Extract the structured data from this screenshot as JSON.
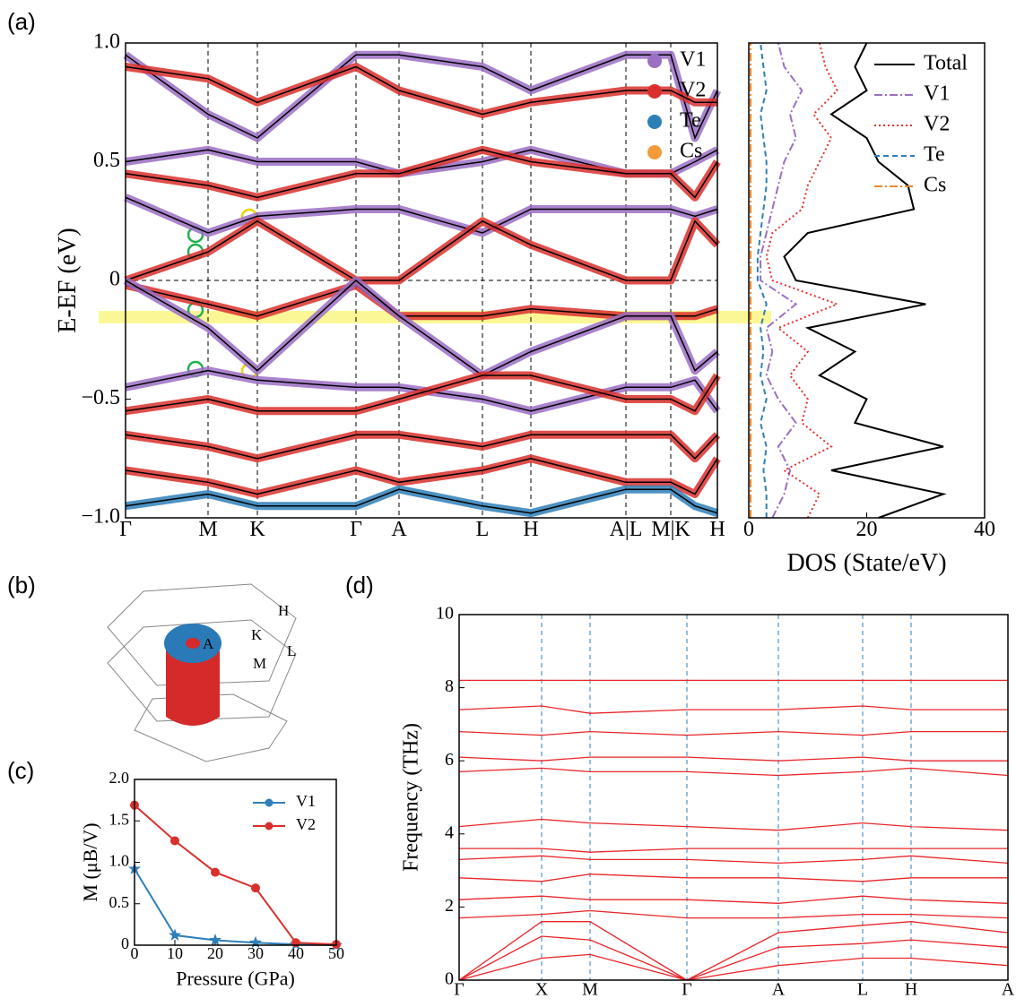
{
  "panels": [
    "(a)",
    "(b)",
    "(c)",
    "(d)"
  ],
  "bz": {
    "labels": [
      "H",
      "K",
      "L",
      "M",
      "A"
    ]
  },
  "chart_data": [
    {
      "type": "band",
      "ylabel": "E-EF (eV)",
      "x": [
        0,
        0.92,
        1.47,
        2.57,
        3.05,
        3.98,
        4.52,
        5.58,
        6.08,
        6.35,
        6.6
      ],
      "xlim": [
        0,
        6.6
      ],
      "xticks": [
        {
          "value": 0,
          "label": "Γ"
        },
        {
          "value": 0.92,
          "label": "M"
        },
        {
          "value": 1.47,
          "label": "K"
        },
        {
          "value": 2.57,
          "label": "Γ"
        },
        {
          "value": 3.05,
          "label": "A"
        },
        {
          "value": 3.98,
          "label": "L"
        },
        {
          "value": 4.52,
          "label": "H"
        },
        {
          "value": 5.58,
          "label": "A|L"
        },
        {
          "value": 6.08,
          "label": "M|K"
        },
        {
          "value": 6.6,
          "label": "H"
        }
      ],
      "ylim": [
        -1,
        1
      ],
      "yticks": [
        {
          "value": -1,
          "label": "−1.0"
        },
        {
          "value": -0.5,
          "label": "−0.5"
        },
        0,
        0.5,
        {
          "value": 1,
          "label": "1.0"
        }
      ],
      "grid": "x",
      "zero_line": true,
      "legend": [
        {
          "name": "V1",
          "color": "#9b6fc4"
        },
        {
          "name": "V2",
          "color": "#d9302c"
        },
        {
          "name": "Te",
          "color": "#2e7fb8"
        },
        {
          "name": "Cs",
          "color": "#f39a3b"
        }
      ],
      "series": [
        {
          "color": "#9b6fc4",
          "values": [
            0.95,
            0.7,
            0.6,
            0.95,
            0.95,
            0.9,
            0.8,
            0.95,
            0.95,
            0.6,
            0.8
          ]
        },
        {
          "color": "#d9302c",
          "values": [
            0.9,
            0.85,
            0.75,
            0.9,
            0.8,
            0.7,
            0.75,
            0.8,
            0.8,
            0.75,
            0.75
          ]
        },
        {
          "color": "#9b6fc4",
          "values": [
            0.5,
            0.55,
            0.5,
            0.5,
            0.45,
            0.5,
            0.55,
            0.45,
            0.45,
            0.5,
            0.55
          ]
        },
        {
          "color": "#d9302c",
          "values": [
            0.45,
            0.4,
            0.35,
            0.45,
            0.45,
            0.55,
            0.5,
            0.45,
            0.45,
            0.35,
            0.5
          ]
        },
        {
          "color": "#9b6fc4",
          "values": [
            0.35,
            0.2,
            0.27,
            0.3,
            0.3,
            0.2,
            0.3,
            0.3,
            0.3,
            0.27,
            0.3
          ]
        },
        {
          "color": "#d9302c",
          "values": [
            0.0,
            0.12,
            0.25,
            0.0,
            0.0,
            0.25,
            0.15,
            0.0,
            0.0,
            0.25,
            0.15
          ]
        },
        {
          "color": "#d9302c",
          "values": [
            -0.02,
            -0.1,
            -0.15,
            -0.02,
            -0.15,
            -0.15,
            -0.12,
            -0.15,
            -0.15,
            -0.15,
            -0.12
          ]
        },
        {
          "color": "#9b6fc4",
          "values": [
            0.0,
            -0.2,
            -0.38,
            0.0,
            -0.15,
            -0.4,
            -0.3,
            -0.15,
            -0.15,
            -0.38,
            -0.3
          ]
        },
        {
          "color": "#9b6fc4",
          "values": [
            -0.45,
            -0.38,
            -0.42,
            -0.45,
            -0.45,
            -0.5,
            -0.55,
            -0.45,
            -0.45,
            -0.42,
            -0.55
          ]
        },
        {
          "color": "#d9302c",
          "values": [
            -0.55,
            -0.5,
            -0.55,
            -0.55,
            -0.5,
            -0.4,
            -0.4,
            -0.5,
            -0.5,
            -0.55,
            -0.4
          ]
        },
        {
          "color": "#d9302c",
          "values": [
            -0.65,
            -0.7,
            -0.75,
            -0.65,
            -0.65,
            -0.7,
            -0.65,
            -0.65,
            -0.65,
            -0.75,
            -0.65
          ]
        },
        {
          "color": "#d9302c",
          "values": [
            -0.8,
            -0.85,
            -0.9,
            -0.8,
            -0.85,
            -0.8,
            -0.75,
            -0.85,
            -0.85,
            -0.9,
            -0.75
          ]
        },
        {
          "color": "#2e7fb8",
          "values": [
            -0.95,
            -0.9,
            -0.95,
            -0.95,
            -0.88,
            -0.95,
            -0.98,
            -0.88,
            -0.88,
            -0.95,
            -0.98
          ]
        }
      ]
    },
    {
      "type": "dos",
      "xlabel": "DOS (State/eV)",
      "y": [
        -1.0,
        -0.9,
        -0.8,
        -0.7,
        -0.6,
        -0.5,
        -0.4,
        -0.3,
        -0.2,
        -0.1,
        0,
        0.1,
        0.2,
        0.3,
        0.4,
        0.5,
        0.6,
        0.7,
        0.8,
        0.9,
        1.0
      ],
      "xlim": [
        0,
        40
      ],
      "xticks": [
        0,
        20,
        40
      ],
      "ylim": [
        -1,
        1
      ],
      "series": [
        {
          "name": "Total",
          "color": "#000000",
          "style": "solid",
          "values": [
            22,
            33,
            14,
            33,
            18,
            20,
            12,
            18,
            10,
            30,
            8,
            6,
            10,
            28,
            27,
            22,
            20,
            14,
            20,
            18,
            20
          ]
        },
        {
          "name": "V1",
          "color": "#9b6fc4",
          "style": "dashdot",
          "values": [
            4,
            6,
            7,
            5,
            8,
            5,
            3,
            4,
            3,
            8,
            2,
            2,
            3,
            4,
            5,
            6,
            8,
            7,
            9,
            6,
            5
          ]
        },
        {
          "name": "V2",
          "color": "#e8302c",
          "style": "dotted",
          "values": [
            10,
            12,
            6,
            14,
            9,
            10,
            7,
            10,
            5,
            15,
            4,
            3,
            4,
            9,
            10,
            12,
            14,
            11,
            15,
            13,
            12
          ]
        },
        {
          "name": "Te",
          "color": "#2e7fb8",
          "style": "dashed",
          "values": [
            3,
            3,
            2.5,
            3,
            2,
            3,
            2,
            2.5,
            2,
            3,
            1.5,
            1.5,
            2,
            2.5,
            3,
            3,
            2.5,
            2,
            3,
            2.5,
            2
          ]
        },
        {
          "name": "Cs",
          "color": "#f0862a",
          "style": "dashdot",
          "values": [
            0.3,
            0.3,
            0.3,
            0.3,
            0.3,
            0.3,
            0.3,
            0.3,
            0.3,
            0.3,
            0.3,
            0.3,
            0.3,
            0.3,
            0.3,
            0.3,
            0.3,
            0.3,
            0.3,
            0.3,
            0.3
          ]
        }
      ]
    },
    {
      "type": "line",
      "xlabel": "Pressure (GPa)",
      "ylabel": "M (μB/V)",
      "x": [
        0,
        10,
        20,
        30,
        40,
        50
      ],
      "xlim": [
        0,
        50
      ],
      "xticks": [
        0,
        10,
        20,
        30,
        40,
        50
      ],
      "ylim": [
        0,
        2
      ],
      "yticks": [
        0,
        0.5,
        {
          "value": 1,
          "label": "1.0"
        },
        1.5,
        {
          "value": 2,
          "label": "2.0"
        }
      ],
      "series": [
        {
          "name": "V1",
          "color": "#2e7fb8",
          "marker": "star",
          "values": [
            0.92,
            0.12,
            0.06,
            0.03,
            0.01,
            0.0
          ]
        },
        {
          "name": "V2",
          "color": "#d9302c",
          "marker": "circle",
          "values": [
            1.69,
            1.26,
            0.88,
            0.69,
            0.03,
            0.01
          ]
        }
      ]
    },
    {
      "type": "band",
      "ylabel": "Frequency (THz)",
      "x": [
        0,
        0.92,
        1.46,
        2.54,
        3.56,
        4.5,
        5.04,
        6.12
      ],
      "xlim": [
        0,
        6.12
      ],
      "xticks": [
        {
          "value": 0,
          "label": "Γ"
        },
        {
          "value": 0.92,
          "label": "X"
        },
        {
          "value": 1.46,
          "label": "M"
        },
        {
          "value": 2.54,
          "label": "Γ"
        },
        {
          "value": 3.56,
          "label": "A"
        },
        {
          "value": 4.5,
          "label": "L"
        },
        {
          "value": 5.04,
          "label": "H"
        },
        {
          "value": 6.12,
          "label": "A"
        }
      ],
      "ylim": [
        0,
        10
      ],
      "yticks": [
        0,
        2,
        4,
        6,
        8,
        10
      ],
      "grid": "x",
      "grid_color": "#2e7fb8",
      "series": [
        {
          "color": "#e8252a",
          "values": [
            0,
            0.6,
            0.7,
            0,
            0.4,
            0.6,
            0.6,
            0.4
          ]
        },
        {
          "color": "#e8252a",
          "values": [
            0,
            1.2,
            1.1,
            0,
            0.9,
            1.0,
            1.1,
            0.9
          ]
        },
        {
          "color": "#e8252a",
          "values": [
            0,
            1.6,
            1.6,
            0,
            1.3,
            1.5,
            1.6,
            1.3
          ]
        },
        {
          "color": "#e8252a",
          "values": [
            1.7,
            1.8,
            1.9,
            1.7,
            1.7,
            1.8,
            1.8,
            1.7
          ]
        },
        {
          "color": "#e8252a",
          "values": [
            2.2,
            2.3,
            2.2,
            2.2,
            2.1,
            2.3,
            2.2,
            2.1
          ]
        },
        {
          "color": "#e8252a",
          "values": [
            2.8,
            2.7,
            2.9,
            2.8,
            2.8,
            2.7,
            2.8,
            2.8
          ]
        },
        {
          "color": "#e8252a",
          "values": [
            3.3,
            3.4,
            3.3,
            3.3,
            3.2,
            3.3,
            3.4,
            3.2
          ]
        },
        {
          "color": "#e8252a",
          "values": [
            3.6,
            3.6,
            3.5,
            3.6,
            3.6,
            3.6,
            3.6,
            3.6
          ]
        },
        {
          "color": "#e8252a",
          "values": [
            4.2,
            4.4,
            4.3,
            4.2,
            4.1,
            4.3,
            4.2,
            4.1
          ]
        },
        {
          "color": "#e8252a",
          "values": [
            5.7,
            5.8,
            5.7,
            5.7,
            5.6,
            5.7,
            5.8,
            5.6
          ]
        },
        {
          "color": "#e8252a",
          "values": [
            6.1,
            6.0,
            6.1,
            6.1,
            6.0,
            6.1,
            6.0,
            6.0
          ]
        },
        {
          "color": "#e8252a",
          "values": [
            6.8,
            6.7,
            6.8,
            6.7,
            6.8,
            6.7,
            6.8,
            6.8
          ]
        },
        {
          "color": "#e8252a",
          "values": [
            7.4,
            7.5,
            7.3,
            7.4,
            7.4,
            7.5,
            7.4,
            7.4
          ]
        },
        {
          "color": "#e8252a",
          "values": [
            8.2,
            8.2,
            8.2,
            8.2,
            8.2,
            8.2,
            8.2,
            8.2
          ]
        }
      ]
    }
  ]
}
